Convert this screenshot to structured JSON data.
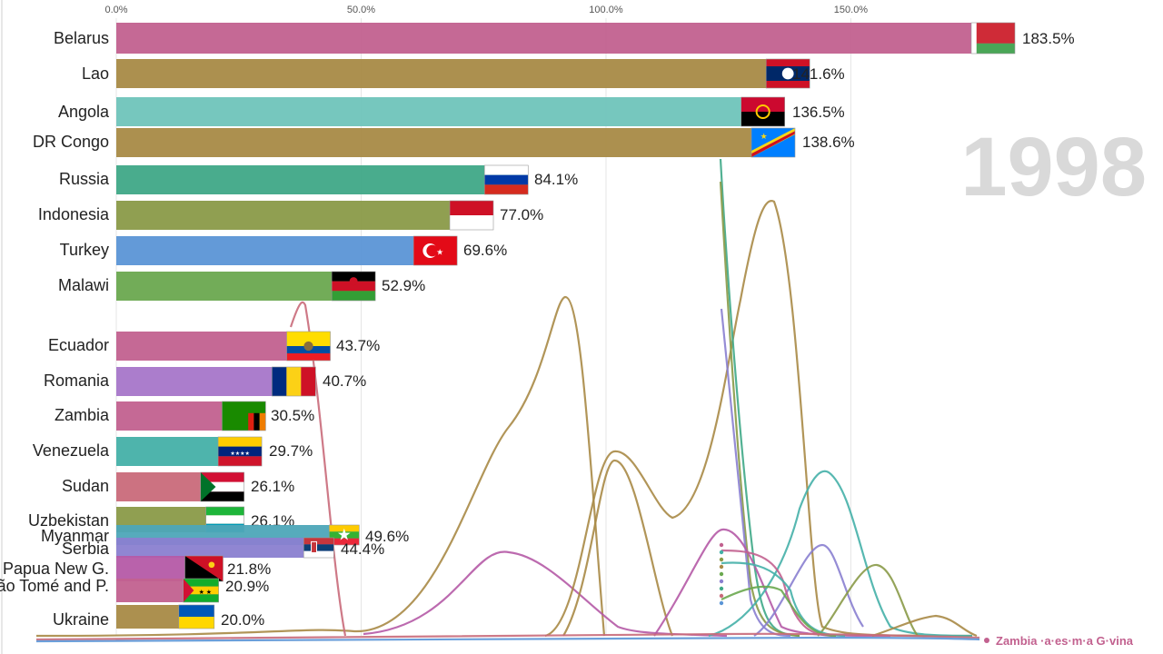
{
  "year": "1998",
  "chart_data": {
    "type": "bar",
    "orientation": "horizontal",
    "xlim": [
      0,
      183.5
    ],
    "x_ticks": [
      "0.0%",
      "50.0%",
      "100.0%",
      "150.0%"
    ],
    "x_tick_values": [
      0,
      50,
      100,
      150
    ],
    "grid": true,
    "bars": [
      {
        "category": "Belarus",
        "value": 183.5,
        "label": "183.5%",
        "color": "#c2618f",
        "flag": "belarus"
      },
      {
        "category": "Lao",
        "value": 141.6,
        "label": "141.6%",
        "color": "#a88a46",
        "flag": "lao"
      },
      {
        "category": "Angola",
        "value": 136.5,
        "label": "136.5%",
        "color": "#6fc4bb",
        "flag": "angola"
      },
      {
        "category": "DR Congo",
        "value": 138.6,
        "label": "138.6%",
        "color": "#a88a46",
        "flag": "drcongo"
      },
      {
        "category": "Russia",
        "value": 84.1,
        "label": "84.1%",
        "color": "#3fa887",
        "flag": "russia"
      },
      {
        "category": "Indonesia",
        "value": 77.0,
        "label": "77.0%",
        "color": "#8a9a48",
        "flag": "indonesia"
      },
      {
        "category": "Turkey",
        "value": 69.6,
        "label": "69.6%",
        "color": "#5b95d6",
        "flag": "turkey"
      },
      {
        "category": "Malawi",
        "value": 52.9,
        "label": "52.9%",
        "color": "#6aa84f",
        "flag": "malawi"
      },
      {
        "category": "Ecuador",
        "value": 43.7,
        "label": "43.7%",
        "color": "#c2618f",
        "flag": "ecuador"
      },
      {
        "category": "Romania",
        "value": 40.7,
        "label": "40.7%",
        "color": "#a676c9",
        "flag": "romania"
      },
      {
        "category": "Zambia",
        "value": 30.5,
        "label": "30.5%",
        "color": "#c2618f",
        "flag": "zambia"
      },
      {
        "category": "Venezuela",
        "value": 29.7,
        "label": "29.7%",
        "color": "#45b0a8",
        "flag": "venezuela"
      },
      {
        "category": "Sudan",
        "value": 26.1,
        "label": "26.1%",
        "color": "#c96a7a",
        "flag": "sudan"
      },
      {
        "category": "Uzbekistan",
        "value": 26.1,
        "label": "26.1%",
        "color": "#8a9a48",
        "flag": "uzbekistan"
      },
      {
        "category": "Myanmar",
        "value": 49.6,
        "label": "49.6%",
        "color": "#4da6b8",
        "flag": "myanmar"
      },
      {
        "category": "Serbia",
        "value": 44.4,
        "label": "44.4%",
        "color": "#8a7fd0",
        "flag": "serbia"
      },
      {
        "category": "Papua New G.",
        "value": 21.8,
        "label": "21.8%",
        "color": "#b55aa6",
        "flag": "png"
      },
      {
        "category": "ão Tomé and P.",
        "value": 20.9,
        "label": "20.9%",
        "color": "#c2618f",
        "flag": "saotome"
      },
      {
        "category": "Ukraine",
        "value": 20.0,
        "label": "20.0%",
        "color": "#a88a46",
        "flag": "ukraine"
      }
    ],
    "legend": {
      "text": "Zambia ·a·es·m·a G·vina",
      "color_a": "#c2618f",
      "color_b": "#45b0a8"
    }
  }
}
